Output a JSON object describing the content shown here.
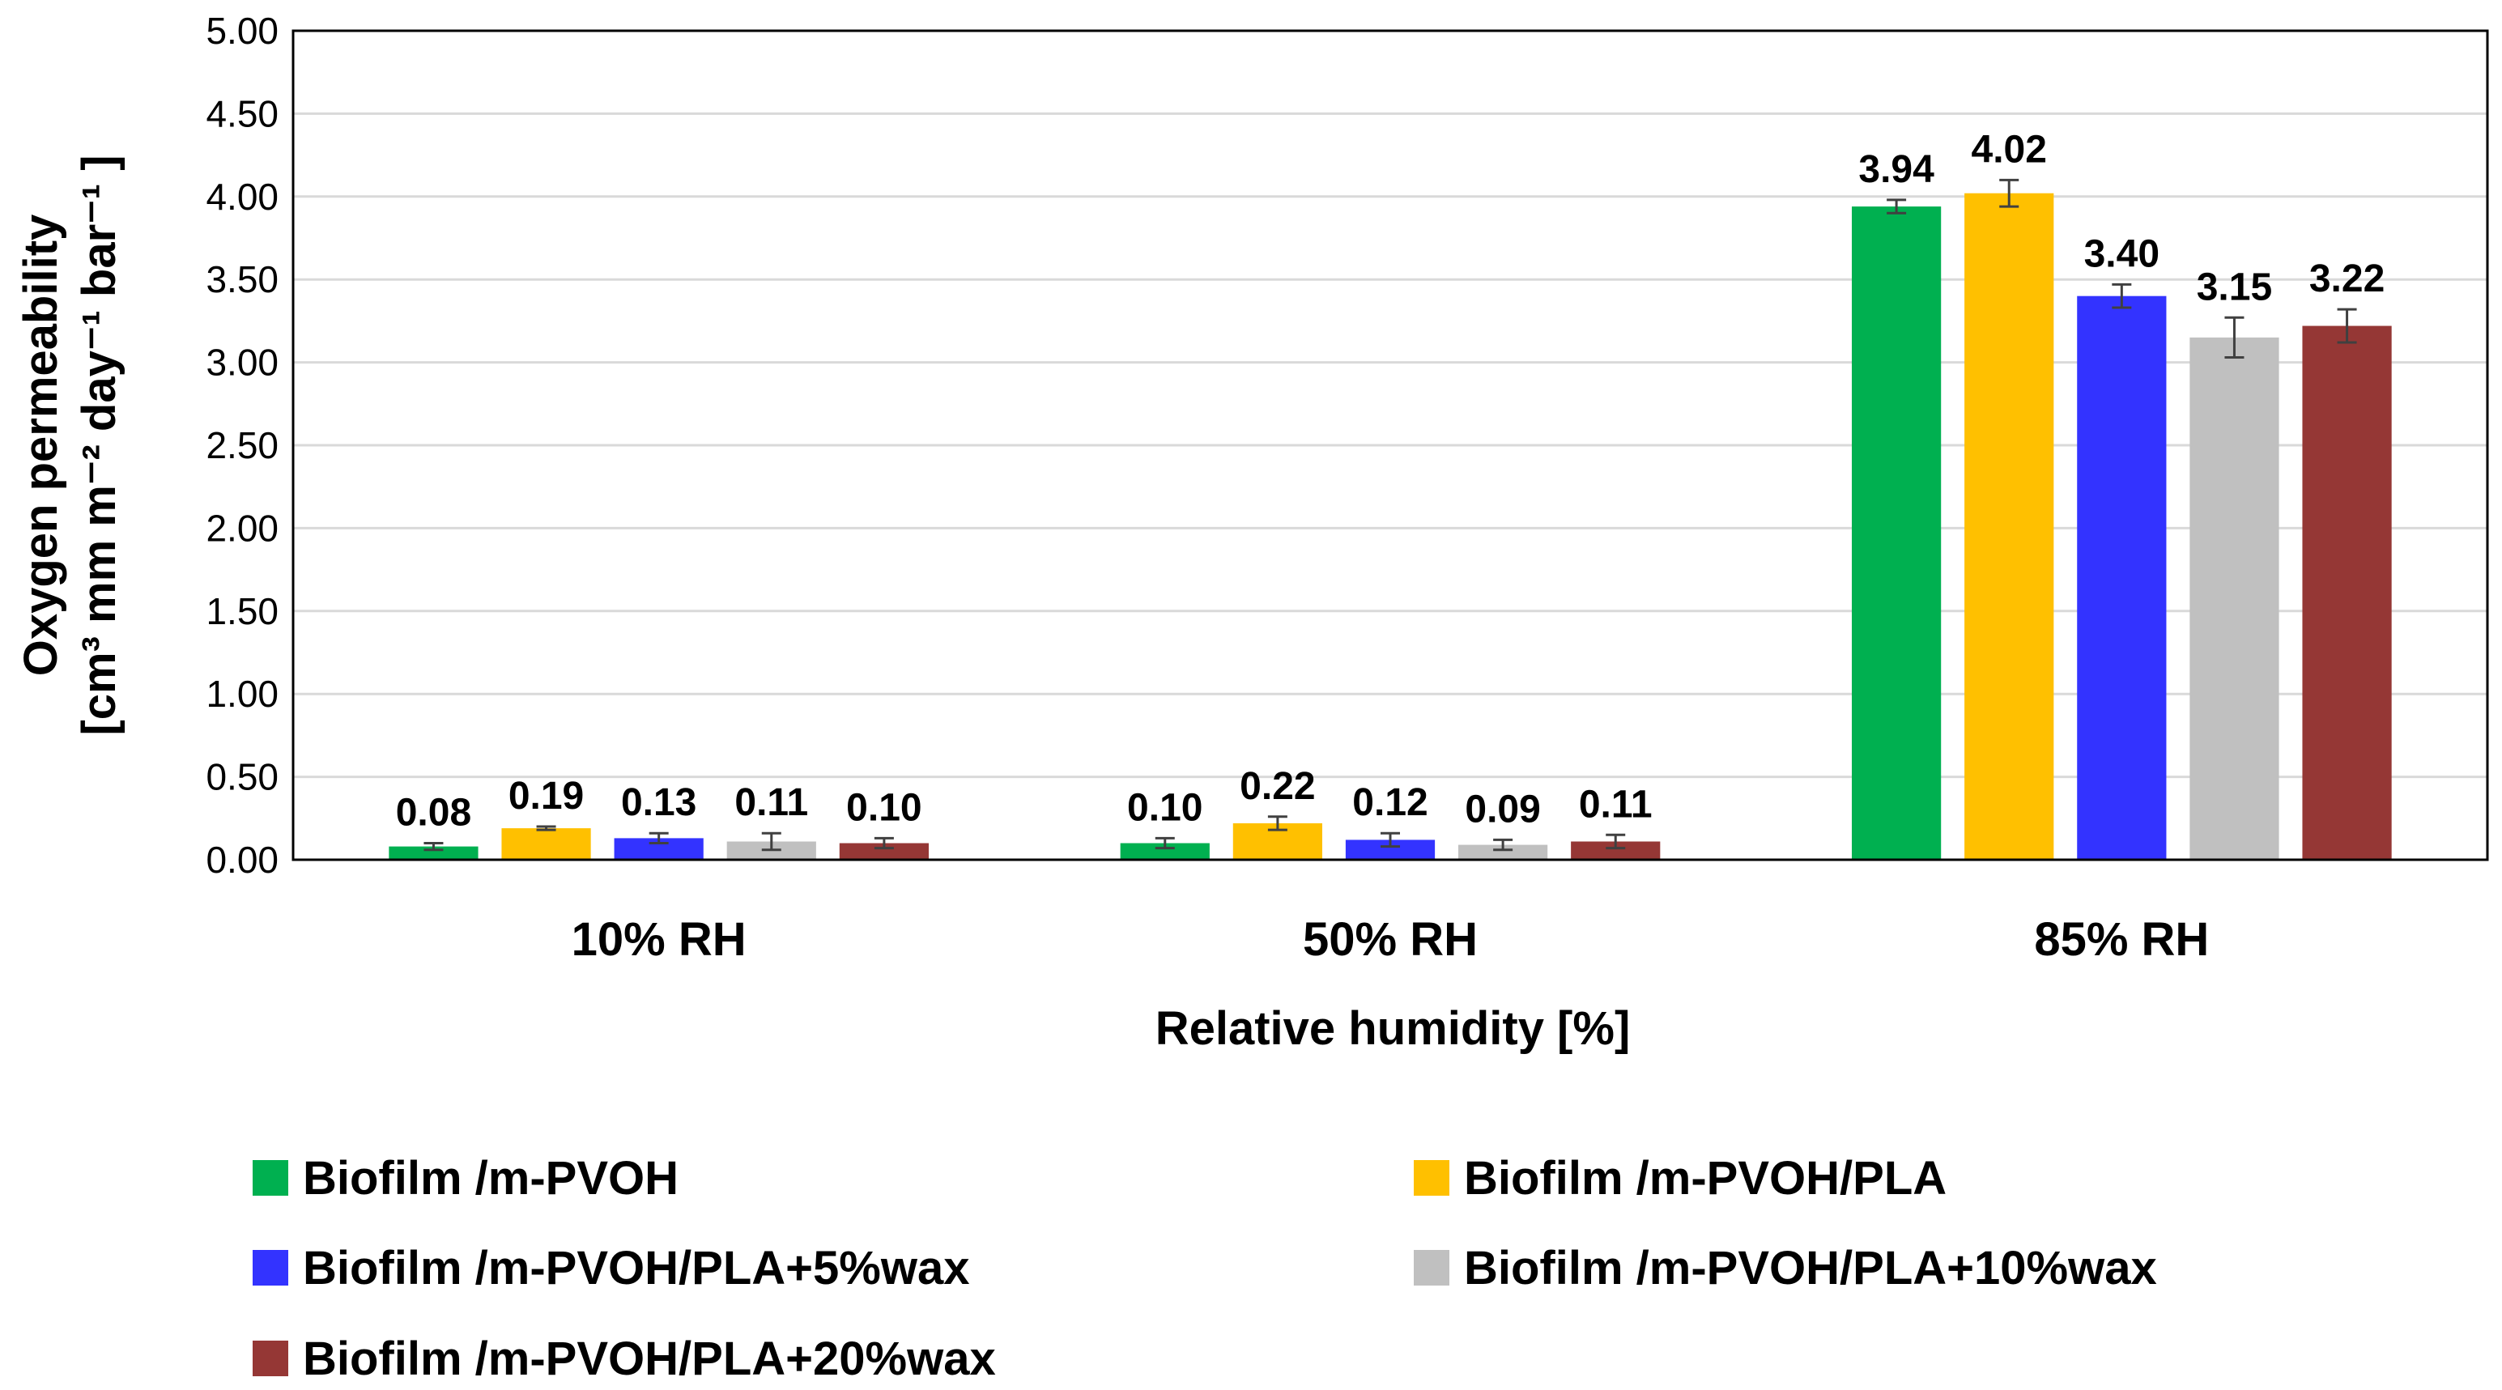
{
  "chart_data": {
    "type": "bar",
    "title": "",
    "xlabel": "Relative humidity [%]",
    "ylabel_line1": "Oxygen permeability",
    "ylabel_line2": "[cm³  mm m⁻² day⁻¹ bar⁻¹ ]",
    "ylim": [
      0,
      5
    ],
    "ytick_step": 0.5,
    "yticks": [
      "0.00",
      "0.50",
      "1.00",
      "1.50",
      "2.00",
      "2.50",
      "3.00",
      "3.50",
      "4.00",
      "4.50",
      "5.00"
    ],
    "grid": true,
    "legend_position": "bottom",
    "categories": [
      "10% RH",
      "50% RH",
      "85% RH"
    ],
    "series": [
      {
        "name": "Biofilm /m-PVOH",
        "color": "#00b050",
        "values": [
          0.08,
          0.1,
          3.94
        ],
        "errors": [
          0.02,
          0.03,
          0.04
        ],
        "labels": [
          "0.08",
          "0.10",
          "3.94"
        ]
      },
      {
        "name": "Biofilm /m-PVOH/PLA",
        "color": "#ffc000",
        "values": [
          0.19,
          0.22,
          4.02
        ],
        "errors": [
          0.01,
          0.04,
          0.08
        ],
        "labels": [
          "0.19",
          "0.22",
          "4.02"
        ]
      },
      {
        "name": "Biofilm /m-PVOH/PLA+5%wax",
        "color": "#3333ff",
        "values": [
          0.13,
          0.12,
          3.4
        ],
        "errors": [
          0.03,
          0.04,
          0.07
        ],
        "labels": [
          "0.13",
          "0.12",
          "3.40"
        ]
      },
      {
        "name": "Biofilm /m-PVOH/PLA+10%wax",
        "color": "#c0c0c0",
        "values": [
          0.11,
          0.09,
          3.15
        ],
        "errors": [
          0.05,
          0.03,
          0.12
        ],
        "labels": [
          "0.11",
          "0.09",
          "3.15"
        ]
      },
      {
        "name": "Biofilm /m-PVOH/PLA+20%wax",
        "color": "#953735",
        "values": [
          0.1,
          0.11,
          3.22
        ],
        "errors": [
          0.03,
          0.04,
          0.1
        ],
        "labels": [
          "0.10",
          "0.11",
          "3.22"
        ]
      }
    ]
  }
}
